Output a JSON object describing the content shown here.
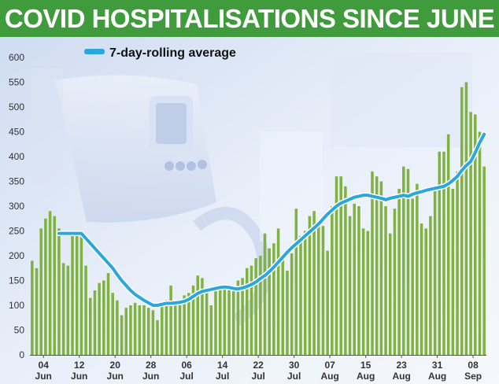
{
  "header": {
    "title": "COVID HOSPITALISATIONS SINCE JUNE"
  },
  "colors": {
    "header_bg": "#3f9b3c",
    "bars": "#7fb241",
    "line": "#2ba6df",
    "background": "#e6edf8"
  },
  "chart_data": {
    "type": "bar",
    "title": "COVID HOSPITALISATIONS SINCE JUNE",
    "xlabel": "",
    "ylabel": "",
    "ylim": [
      0,
      600
    ],
    "yticks": [
      0,
      50,
      100,
      150,
      200,
      250,
      300,
      350,
      400,
      450,
      500,
      550,
      600
    ],
    "grid": false,
    "legend_position": "top-left",
    "x_tick_labels": [
      {
        "day": "04",
        "month": "Jun",
        "index": 2
      },
      {
        "day": "12",
        "month": "Jun",
        "index": 10
      },
      {
        "day": "20",
        "month": "Jun",
        "index": 18
      },
      {
        "day": "28",
        "month": "Jun",
        "index": 26
      },
      {
        "day": "06",
        "month": "Jul",
        "index": 34
      },
      {
        "day": "14",
        "month": "Jul",
        "index": 42
      },
      {
        "day": "22",
        "month": "Jul",
        "index": 50
      },
      {
        "day": "30",
        "month": "Jul",
        "index": 58
      },
      {
        "day": "07",
        "month": "Aug",
        "index": 66
      },
      {
        "day": "15",
        "month": "Aug",
        "index": 74
      },
      {
        "day": "23",
        "month": "Aug",
        "index": 82
      },
      {
        "day": "31",
        "month": "Aug",
        "index": 90
      },
      {
        "day": "08",
        "month": "Sep",
        "index": 98
      }
    ],
    "series": [
      {
        "kind": "bar",
        "values": [
          190,
          175,
          255,
          275,
          290,
          280,
          255,
          185,
          180,
          250,
          240,
          245,
          180,
          115,
          130,
          145,
          150,
          165,
          125,
          110,
          80,
          95,
          100,
          105,
          100,
          100,
          95,
          90,
          70,
          100,
          110,
          140,
          110,
          100,
          120,
          125,
          140,
          160,
          155,
          130,
          100,
          130,
          135,
          140,
          140,
          135,
          150,
          155,
          175,
          180,
          195,
          200,
          245,
          215,
          225,
          255,
          200,
          170,
          205,
          295,
          240,
          250,
          280,
          290,
          270,
          260,
          210,
          300,
          360,
          360,
          340,
          280,
          305,
          300,
          255,
          250,
          370,
          360,
          350,
          300,
          245,
          295,
          335,
          380,
          375,
          315,
          345,
          265,
          255,
          280,
          335,
          410,
          410,
          445,
          335,
          370,
          540,
          550,
          490,
          485,
          450,
          380
        ]
      },
      {
        "kind": "line",
        "name": "7-day-rolling average",
        "values": [
          245,
          245,
          245,
          245,
          245,
          245,
          235,
          225,
          215,
          205,
          195,
          185,
          175,
          162,
          150,
          140,
          130,
          122,
          116,
          110,
          105,
          100,
          100,
          102,
          104,
          104,
          105,
          106,
          108,
          112,
          118,
          124,
          128,
          130,
          132,
          134,
          136,
          137,
          136,
          134,
          133,
          135,
          138,
          142,
          147,
          154,
          160,
          168,
          177,
          187,
          197,
          207,
          216,
          224,
          232,
          240,
          248,
          256,
          264,
          274,
          284,
          292,
          300,
          306,
          310,
          314,
          318,
          320,
          322,
          322,
          320,
          318,
          316,
          313,
          316,
          318,
          320,
          322,
          320,
          324,
          327,
          329,
          332,
          334,
          336,
          338,
          340,
          345,
          352,
          360,
          372,
          382,
          390,
          408,
          428,
          445,
          458,
          462,
          464,
          466,
          468,
          470
        ]
      }
    ]
  },
  "chart": {
    "legend_label": "7-day-rolling average"
  }
}
